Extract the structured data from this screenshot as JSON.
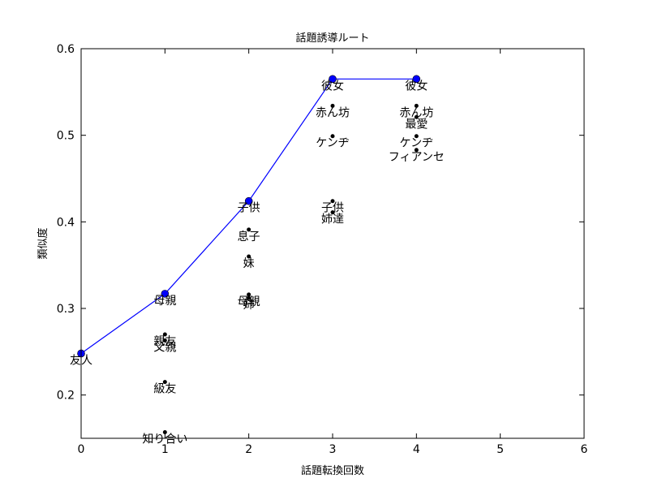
{
  "chart_data": {
    "type": "line",
    "title": "話題誘導ルート",
    "xlabel": "話題転換回数",
    "ylabel": "類似度",
    "xlim": [
      0,
      6
    ],
    "ylim": [
      0.15,
      0.6
    ],
    "xticks": [
      "0",
      "1",
      "2",
      "3",
      "4",
      "5",
      "6"
    ],
    "yticks": [
      "0.2",
      "0.3",
      "0.4",
      "0.5",
      "0.6"
    ],
    "grid": false,
    "line_color": "#0000ff",
    "marker_color": "#0000ff",
    "scatter_color": "#000000",
    "route": [
      {
        "x": 0,
        "y": 0.248,
        "label": "友人"
      },
      {
        "x": 1,
        "y": 0.317,
        "label": "母親"
      },
      {
        "x": 2,
        "y": 0.424,
        "label": "子供"
      },
      {
        "x": 3,
        "y": 0.565,
        "label": "彼女"
      },
      {
        "x": 4,
        "y": 0.565,
        "label": "彼女"
      }
    ],
    "candidates": [
      {
        "x": 1,
        "y": 0.27,
        "label": "親友"
      },
      {
        "x": 1,
        "y": 0.263,
        "label": "父親"
      },
      {
        "x": 1,
        "y": 0.215,
        "label": "級友"
      },
      {
        "x": 1,
        "y": 0.157,
        "label": "知り合い"
      },
      {
        "x": 2,
        "y": 0.391,
        "label": "息子"
      },
      {
        "x": 2,
        "y": 0.36,
        "label": "妹"
      },
      {
        "x": 2,
        "y": 0.316,
        "label": "母親"
      },
      {
        "x": 2,
        "y": 0.312,
        "label": "姉"
      },
      {
        "x": 3,
        "y": 0.534,
        "label": "赤ん坊"
      },
      {
        "x": 3,
        "y": 0.499,
        "label": "ケンヂ"
      },
      {
        "x": 3,
        "y": 0.424,
        "label": "子供"
      },
      {
        "x": 3,
        "y": 0.411,
        "label": "姉達"
      },
      {
        "x": 4,
        "y": 0.534,
        "label": "赤ん坊"
      },
      {
        "x": 4,
        "y": 0.521,
        "label": "最愛"
      },
      {
        "x": 4,
        "y": 0.499,
        "label": "ケンヂ"
      },
      {
        "x": 4,
        "y": 0.483,
        "label": "フィアンセ"
      }
    ]
  }
}
